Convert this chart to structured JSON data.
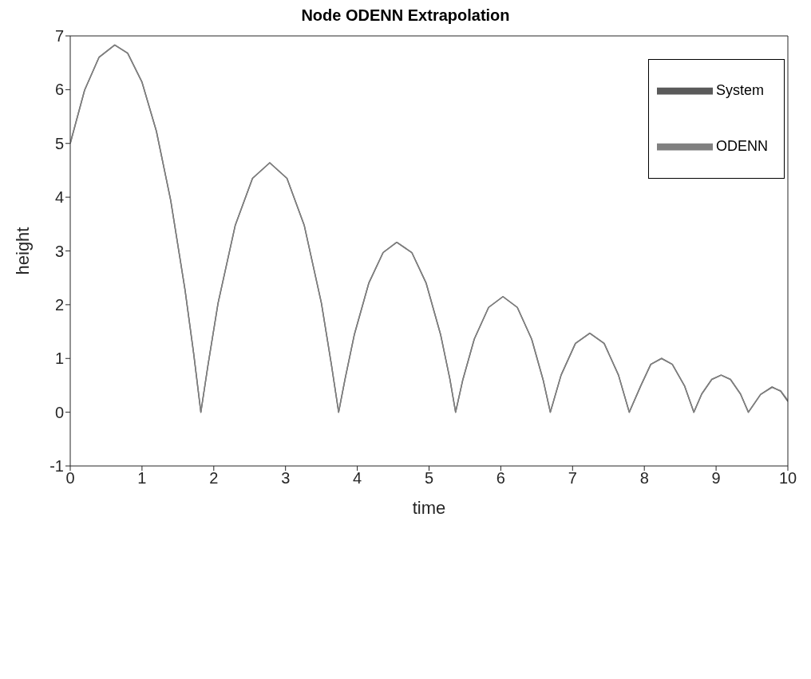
{
  "chart_data": {
    "type": "line",
    "title": "Node ODENN Extrapolation",
    "xlabel": "time",
    "ylabel": "height",
    "x": [
      0,
      0.2,
      0.4,
      0.62,
      0.8,
      1.0,
      1.2,
      1.4,
      1.6,
      1.72,
      1.82,
      1.92,
      2.06,
      2.3,
      2.54,
      2.78,
      3.02,
      3.26,
      3.5,
      3.64,
      3.74,
      3.83,
      3.96,
      4.16,
      4.36,
      4.55,
      4.76,
      4.96,
      5.16,
      5.29,
      5.37,
      5.47,
      5.63,
      5.83,
      6.03,
      6.23,
      6.43,
      6.59,
      6.69,
      6.84,
      7.04,
      7.24,
      7.44,
      7.64,
      7.79,
      7.95,
      8.09,
      8.24,
      8.39,
      8.56,
      8.69,
      8.8,
      8.94,
      9.07,
      9.2,
      9.34,
      9.45,
      9.62,
      9.78,
      9.9,
      10
    ],
    "series": [
      {
        "name": "System",
        "color": "#5a5a5a",
        "values": [
          5.0,
          5.99,
          6.6,
          6.83,
          6.68,
          6.14,
          5.23,
          3.94,
          2.27,
          1.09,
          0,
          0.88,
          2.03,
          3.48,
          4.35,
          4.64,
          4.35,
          3.48,
          2.03,
          0.88,
          0,
          0.62,
          1.45,
          2.4,
          2.97,
          3.16,
          2.97,
          2.4,
          1.45,
          0.62,
          0,
          0.6,
          1.36,
          1.95,
          2.15,
          1.95,
          1.36,
          0.6,
          0,
          0.69,
          1.28,
          1.47,
          1.28,
          0.69,
          0,
          0.49,
          0.89,
          1.0,
          0.89,
          0.49,
          0,
          0.34,
          0.61,
          0.69,
          0.61,
          0.34,
          0,
          0.33,
          0.47,
          0.39,
          0.2
        ]
      },
      {
        "name": "ODENN",
        "color": "#808080",
        "values": [
          5.0,
          5.99,
          6.6,
          6.83,
          6.68,
          6.14,
          5.23,
          3.94,
          2.27,
          1.09,
          0,
          0.88,
          2.03,
          3.48,
          4.35,
          4.64,
          4.35,
          3.48,
          2.03,
          0.88,
          0,
          0.62,
          1.45,
          2.4,
          2.97,
          3.16,
          2.97,
          2.4,
          1.45,
          0.62,
          0,
          0.6,
          1.36,
          1.95,
          2.15,
          1.95,
          1.36,
          0.6,
          0,
          0.69,
          1.28,
          1.47,
          1.28,
          0.69,
          0,
          0.49,
          0.89,
          1.0,
          0.89,
          0.49,
          0,
          0.34,
          0.61,
          0.69,
          0.61,
          0.34,
          0,
          0.33,
          0.46,
          0.4,
          0.22
        ]
      }
    ],
    "xlim": [
      0,
      10
    ],
    "xticks": [
      0,
      1,
      2,
      3,
      4,
      5,
      6,
      7,
      8,
      9,
      10
    ],
    "ylim": [
      -1,
      7
    ],
    "yticks": [
      -1,
      0,
      1,
      2,
      3,
      4,
      5,
      6,
      7
    ],
    "grid": false,
    "legend": "top right"
  }
}
